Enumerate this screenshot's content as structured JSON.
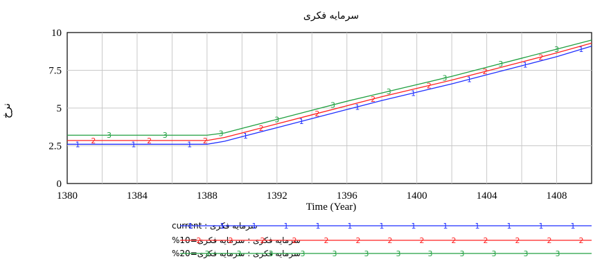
{
  "chart_data": {
    "type": "line",
    "title": "سرمایه فکری",
    "xlabel": "Time (Year)",
    "ylabel": "نرخ",
    "xlim": [
      1380,
      1410
    ],
    "ylim": [
      0,
      10
    ],
    "x_ticks": [
      1380,
      1384,
      1388,
      1392,
      1396,
      1400,
      1404,
      1408
    ],
    "y_ticks": [
      0,
      2.5,
      5,
      7.5,
      10
    ],
    "grid": true,
    "legend_position": "bottom",
    "series": [
      {
        "name": "سرمایه فکری : current",
        "marker": "1",
        "color": "#1f2fff",
        "x": [
          1380,
          1382,
          1384,
          1386,
          1388,
          1389,
          1390,
          1392,
          1394,
          1396,
          1398,
          1400,
          1402,
          1404,
          1406,
          1408,
          1410
        ],
        "values": [
          2.6,
          2.6,
          2.6,
          2.6,
          2.6,
          2.8,
          3.1,
          3.7,
          4.3,
          4.9,
          5.5,
          6.05,
          6.6,
          7.2,
          7.8,
          8.4,
          9.1
        ]
      },
      {
        "name": "سرمایه فکری : سرمایه فکری=10%",
        "marker": "2",
        "color": "#ff2020",
        "x": [
          1380,
          1382,
          1384,
          1386,
          1388,
          1389,
          1390,
          1392,
          1394,
          1396,
          1398,
          1400,
          1402,
          1404,
          1406,
          1408,
          1410
        ],
        "values": [
          2.85,
          2.85,
          2.85,
          2.85,
          2.85,
          3.05,
          3.35,
          3.95,
          4.55,
          5.15,
          5.75,
          6.3,
          6.85,
          7.45,
          8.05,
          8.65,
          9.3
        ]
      },
      {
        "name": "سرمایه فکری : سرمایه فکری=20%",
        "marker": "3",
        "color": "#20a040",
        "x": [
          1380,
          1382,
          1384,
          1386,
          1388,
          1389,
          1390,
          1392,
          1394,
          1396,
          1398,
          1400,
          1402,
          1404,
          1406,
          1408,
          1410
        ],
        "values": [
          3.2,
          3.2,
          3.2,
          3.2,
          3.2,
          3.35,
          3.65,
          4.25,
          4.85,
          5.45,
          6.0,
          6.55,
          7.1,
          7.7,
          8.3,
          8.9,
          9.5
        ]
      }
    ]
  }
}
